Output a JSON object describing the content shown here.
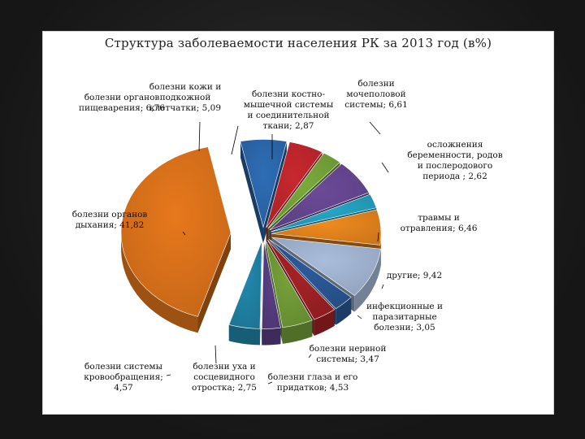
{
  "chart_data": {
    "type": "pie",
    "title": "Структура заболеваемости населения РК за 2013 год (в%)",
    "slices": [
      {
        "label": "болезни органов\nпищеварения; 6,76",
        "value": 6.76,
        "color": "#2e6db5"
      },
      {
        "label": "болезни кожи и\nподкожной\nклетчатки; 5,09",
        "value": 5.09,
        "color": "#c8282e"
      },
      {
        "label": "болезни костно-\nмышечной системы\nи соединительной\nткани; 2,87",
        "value": 2.87,
        "color": "#7aaa3c"
      },
      {
        "label": "болезни\nмочеполовой\nсистемы; 6,61",
        "value": 6.61,
        "color": "#6b4a98"
      },
      {
        "label": "осложнения\nбеременности, родов\nи послеродового\nпериода ; 2,62",
        "value": 2.62,
        "color": "#26a7c8"
      },
      {
        "label": "травмы и\nотравления; 6,46",
        "value": 6.46,
        "color": "#ef8a1e"
      },
      {
        "label": "другие; 9,42",
        "value": 9.42,
        "color": "#a9bddc"
      },
      {
        "label": "инфекционные и\nпаразитарные\nболезни; 3,05",
        "value": 3.05,
        "color": "#2b5a9a"
      },
      {
        "label": "болезни нервной\nсистемы; 3,47",
        "value": 3.47,
        "color": "#a62226"
      },
      {
        "label": "болезни глаза и его\nпридатков; 4,53",
        "value": 4.53,
        "color": "#76a23a"
      },
      {
        "label": "болезни уха и\nсосцевидного\nотростка; 2,75",
        "value": 2.75,
        "color": "#5a3f86"
      },
      {
        "label": "болезни системы\nкровообращения;\n4,57",
        "value": 4.57,
        "color": "#2289ad"
      },
      {
        "label": "болезни органов\nдыхания; 41,82",
        "value": 41.82,
        "color": "#e7781c"
      }
    ]
  }
}
